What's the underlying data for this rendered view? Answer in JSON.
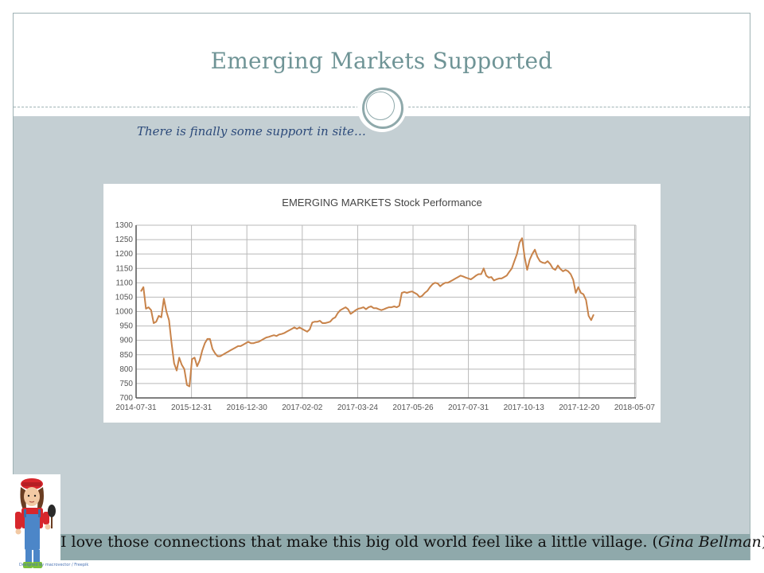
{
  "slide": {
    "title": "Emerging Markets Supported",
    "subtitle": "There is finally some support in site…",
    "quote_text": "I love those connections that make this big old world feel like a little village. (",
    "quote_author": "Gina Bellman",
    "quote_close": ")",
    "credit": "Designed by macrovector / Freepik",
    "accent_color": "#8fa9ab",
    "title_color": "#6f9496"
  },
  "chart_data": {
    "type": "line",
    "title": "EMERGING MARKETS Stock Performance",
    "xlabel": "",
    "ylabel": "",
    "ylim": [
      700,
      1300
    ],
    "yticks": [
      700,
      750,
      800,
      850,
      900,
      950,
      1000,
      1050,
      1100,
      1150,
      1200,
      1250,
      1300
    ],
    "xtick_labels": [
      "2014-07-31",
      "2015-12-31",
      "2016-12-30",
      "2017-02-02",
      "2017-03-24",
      "2017-05-26",
      "2017-07-31",
      "2017-10-13",
      "2017-12-20",
      "2018-05-07"
    ],
    "grid": true,
    "line_color": "#c8834a",
    "series": [
      {
        "values": [
          1070,
          1085,
          1010,
          1015,
          1005,
          960,
          965,
          985,
          980,
          1045,
          1000,
          970,
          890,
          820,
          795,
          840,
          815,
          800,
          745,
          740,
          835,
          840,
          810,
          830,
          865,
          890,
          905,
          905,
          870,
          855,
          845,
          845,
          850,
          855,
          860,
          865,
          870,
          875,
          880,
          880,
          885,
          890,
          895,
          890,
          890,
          893,
          895,
          900,
          905,
          910,
          912,
          915,
          918,
          915,
          920,
          922,
          925,
          930,
          935,
          940,
          945,
          940,
          945,
          940,
          935,
          930,
          938,
          962,
          965,
          965,
          968,
          960,
          960,
          962,
          965,
          975,
          980,
          995,
          1005,
          1010,
          1015,
          1008,
          992,
          998,
          1005,
          1010,
          1012,
          1015,
          1008,
          1015,
          1018,
          1012,
          1012,
          1008,
          1005,
          1008,
          1012,
          1015,
          1015,
          1018,
          1015,
          1020,
          1065,
          1068,
          1065,
          1068,
          1070,
          1065,
          1060,
          1050,
          1055,
          1065,
          1072,
          1085,
          1095,
          1100,
          1098,
          1088,
          1095,
          1100,
          1100,
          1105,
          1110,
          1115,
          1120,
          1125,
          1122,
          1118,
          1115,
          1112,
          1118,
          1125,
          1130,
          1130,
          1150,
          1125,
          1118,
          1120,
          1108,
          1112,
          1115,
          1115,
          1120,
          1125,
          1138,
          1150,
          1175,
          1200,
          1240,
          1255,
          1190,
          1145,
          1180,
          1200,
          1215,
          1190,
          1175,
          1170,
          1168,
          1175,
          1165,
          1150,
          1145,
          1160,
          1148,
          1140,
          1145,
          1140,
          1130,
          1110,
          1065,
          1085,
          1065,
          1060,
          1040,
          985,
          970,
          990
        ]
      }
    ]
  }
}
